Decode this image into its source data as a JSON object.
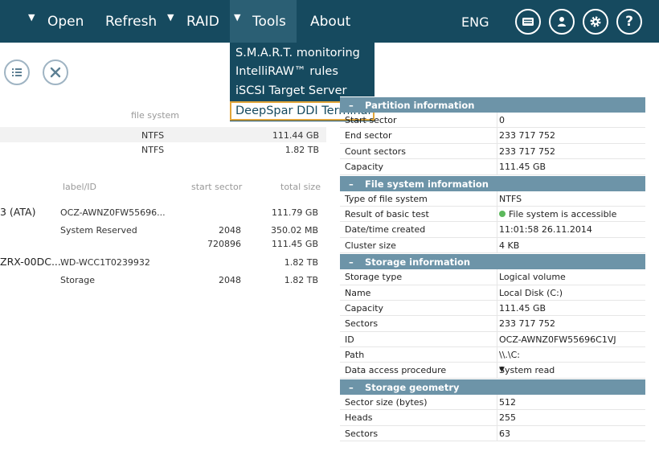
{
  "menu": {
    "open": "Open",
    "refresh": "Refresh",
    "raid": "RAID",
    "tools": "Tools",
    "about": "About",
    "caret": "▼",
    "language": "ENG",
    "help_glyph": "?"
  },
  "icons": [
    "messages-icon",
    "user-icon",
    "settings-icon",
    "help-icon",
    "list-icon",
    "close-icon"
  ],
  "tools_menu": {
    "items": [
      "S.M.A.R.T. monitoring",
      "IntelliRAW™ rules",
      "iSCSI Target Server",
      "DeepSpar DDI Terminal"
    ]
  },
  "left_panel": {
    "fs_header": {
      "file_system": "file system"
    },
    "fs_rows": [
      {
        "fs": "NTFS",
        "size": "111.44 GB"
      },
      {
        "fs": "NTFS",
        "size": "1.82 TB"
      }
    ],
    "disk_headers": {
      "label": "label/ID",
      "start": "start sector",
      "total": "total size"
    },
    "disks": [
      {
        "name": "3 (ATA)",
        "label": "OCZ-AWNZ0FW55696...",
        "start": "",
        "total": "111.79 GB"
      },
      {
        "name": "",
        "label": "System Reserved",
        "start": "2048",
        "total": "350.02 MB"
      },
      {
        "name": "",
        "label": "",
        "start": "720896",
        "total": "111.45 GB"
      },
      {
        "name": "ZRX-00DC...",
        "label": "WD-WCC1T0239932",
        "start": "",
        "total": "1.82 TB"
      },
      {
        "name": "",
        "label": "Storage",
        "start": "2048",
        "total": "1.82 TB"
      }
    ]
  },
  "right_panel": {
    "sections": [
      {
        "title": "Partition information",
        "minus": "–",
        "rows": [
          {
            "k": "Start sector",
            "v": "0"
          },
          {
            "k": "End sector",
            "v": "233 717 752"
          },
          {
            "k": "Count sectors",
            "v": "233 717 752"
          },
          {
            "k": "Capacity",
            "v": "111.45 GB"
          }
        ]
      },
      {
        "title": "File system information",
        "minus": "–",
        "rows": [
          {
            "k": "Type of file system",
            "v": "NTFS"
          },
          {
            "k": "Result of basic test",
            "v": "File system is accessible",
            "status": "ok"
          },
          {
            "k": "Date/time created",
            "v": "11:01:58 26.11.2014"
          },
          {
            "k": "Cluster size",
            "v": "4 KB"
          }
        ]
      },
      {
        "title": "Storage information",
        "minus": "–",
        "rows": [
          {
            "k": "Storage type",
            "v": "Logical volume"
          },
          {
            "k": "Name",
            "v": "Local Disk (C:)"
          },
          {
            "k": "Capacity",
            "v": "111.45 GB"
          },
          {
            "k": "Sectors",
            "v": "233 717 752"
          },
          {
            "k": "ID",
            "v": "OCZ-AWNZ0FW55696C1VJ"
          },
          {
            "k": "Path",
            "v": "\\\\.\\C:"
          },
          {
            "k": "Data access procedure",
            "v": "System read",
            "dropdown": "▼"
          }
        ]
      },
      {
        "title": "Storage geometry",
        "minus": "–",
        "rows": [
          {
            "k": "Sector size (bytes)",
            "v": "512"
          },
          {
            "k": "Heads",
            "v": "255"
          },
          {
            "k": "Sectors",
            "v": "63"
          }
        ]
      }
    ]
  },
  "colors": {
    "bar": "#164a5f",
    "section": "#6d94a8",
    "highlight_border": "#e0a53a",
    "ok": "#5cb85c"
  }
}
